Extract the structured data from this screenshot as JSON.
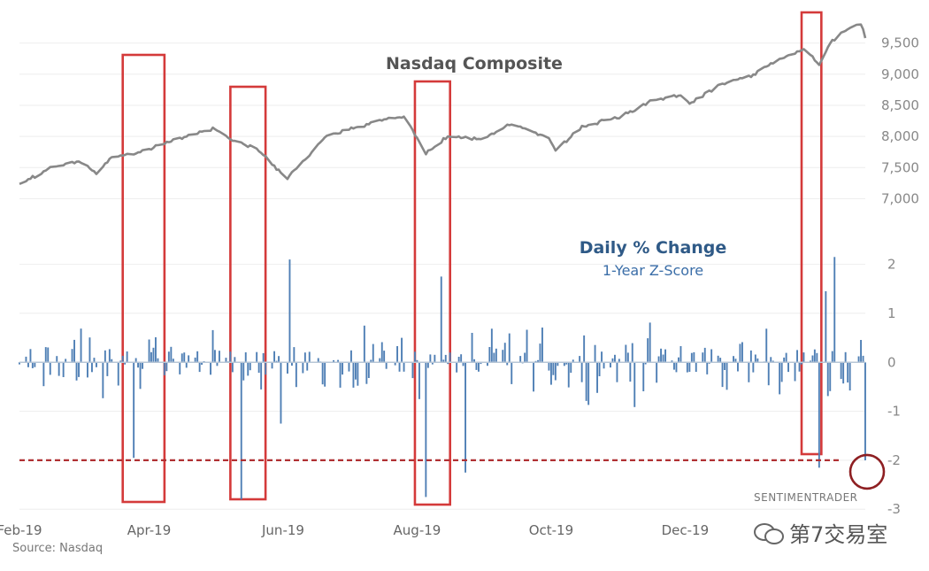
{
  "chart_data": [
    {
      "type": "line",
      "title": "Nasdaq Composite",
      "y_ticks": [
        "9,500",
        "9,000",
        "8,500",
        "8,000",
        "7,500",
        "7,000"
      ],
      "y_tick_values": [
        9500,
        9000,
        8500,
        8000,
        7500,
        7000
      ],
      "ylim": [
        6950,
        9850
      ],
      "x": [
        "2019-02-01",
        "2019-02-15",
        "2019-03-01",
        "2019-03-08",
        "2019-03-15",
        "2019-03-22",
        "2019-03-29",
        "2019-04-15",
        "2019-04-30",
        "2019-05-10",
        "2019-05-20",
        "2019-06-03",
        "2019-06-20",
        "2019-07-01",
        "2019-07-15",
        "2019-07-26",
        "2019-08-05",
        "2019-08-15",
        "2019-08-30",
        "2019-09-12",
        "2019-09-30",
        "2019-10-03",
        "2019-10-15",
        "2019-10-31",
        "2019-11-15",
        "2019-11-29",
        "2019-12-03",
        "2019-12-16",
        "2019-12-31",
        "2020-01-15",
        "2020-01-24",
        "2020-01-31",
        "2020-02-05",
        "2020-02-12",
        "2020-02-19",
        "2020-02-21"
      ],
      "values": [
        7240,
        7490,
        7600,
        7420,
        7670,
        7710,
        7760,
        7970,
        8130,
        7920,
        7800,
        7330,
        7990,
        8120,
        8260,
        8320,
        7730,
        8000,
        7960,
        8200,
        7970,
        7790,
        8150,
        8300,
        8550,
        8660,
        8520,
        8830,
        8970,
        9280,
        9390,
        9150,
        9500,
        9720,
        9820,
        9580
      ],
      "color": "#888888"
    },
    {
      "type": "bar",
      "title": "Daily % Change",
      "subtitle": "1-Year Z-Score",
      "y_ticks": [
        "2",
        "1",
        "0",
        "-1",
        "-2",
        "-3"
      ],
      "y_tick_values": [
        2,
        1,
        0,
        -1,
        -2,
        -3
      ],
      "ylim": [
        -3.05,
        2.3
      ],
      "x_start": "2019-02-01",
      "x_end": "2020-02-21",
      "sample_points": [
        {
          "date": "2019-03-25",
          "value": -1.95
        },
        {
          "date": "2019-05-13",
          "value": -2.8
        },
        {
          "date": "2019-05-31",
          "value": -1.25
        },
        {
          "date": "2019-06-04",
          "value": 2.1
        },
        {
          "date": "2019-08-05",
          "value": -2.75
        },
        {
          "date": "2019-08-12",
          "value": 1.75
        },
        {
          "date": "2019-08-23",
          "value": -2.25
        },
        {
          "date": "2020-01-31",
          "value": -2.15
        },
        {
          "date": "2020-02-03",
          "value": 1.45
        },
        {
          "date": "2020-02-07",
          "value": 2.15
        },
        {
          "date": "2020-02-21",
          "value": -2.0
        }
      ],
      "color": "#4f7fb5",
      "threshold": -2,
      "threshold_color": "#b03033"
    }
  ],
  "x_axis": {
    "ticks": [
      "Feb-19",
      "Apr-19",
      "Jun-19",
      "Aug-19",
      "Oct-19",
      "Dec-19"
    ],
    "tick_dates": [
      "2019-02-01",
      "2019-04-01",
      "2019-06-01",
      "2019-08-01",
      "2019-10-01",
      "2019-12-01"
    ]
  },
  "highlight_ranges": [
    {
      "start": "2019-03-20",
      "end": "2019-04-08"
    },
    {
      "start": "2019-05-08",
      "end": "2019-05-24"
    },
    {
      "start": "2019-07-31",
      "end": "2019-08-16"
    },
    {
      "start": "2020-01-23",
      "end": "2020-02-01"
    }
  ],
  "highlight_color": "#d43a3a",
  "branding": "SENTIMENTRADER",
  "source": "Source: Nasdaq",
  "watermark": "第7交易室"
}
